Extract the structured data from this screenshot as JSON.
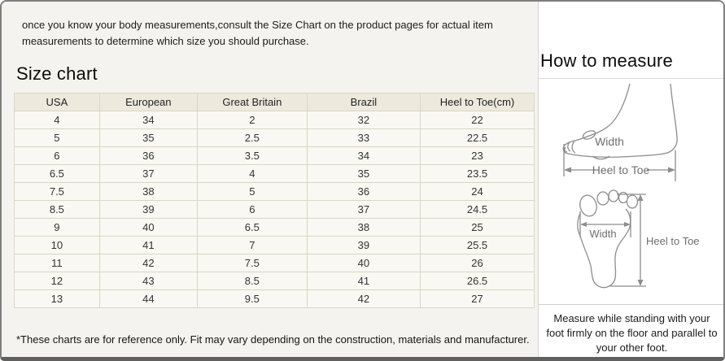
{
  "intro": "once you know your body measurements,consult the Size Chart on the product pages for actual item measurements to determine which size you should purchase.",
  "size_chart": {
    "title": "Size chart",
    "columns": [
      "USA",
      "European",
      "Great Britain",
      "Brazil",
      "Heel to Toe(cm)"
    ],
    "rows": [
      [
        "4",
        "34",
        "2",
        "32",
        "22"
      ],
      [
        "5",
        "35",
        "2.5",
        "33",
        "22.5"
      ],
      [
        "6",
        "36",
        "3.5",
        "34",
        "23"
      ],
      [
        "6.5",
        "37",
        "4",
        "35",
        "23.5"
      ],
      [
        "7.5",
        "38",
        "5",
        "36",
        "24"
      ],
      [
        "8.5",
        "39",
        "6",
        "37",
        "24.5"
      ],
      [
        "9",
        "40",
        "6.5",
        "38",
        "25"
      ],
      [
        "10",
        "41",
        "7",
        "39",
        "25.5"
      ],
      [
        "11",
        "42",
        "7.5",
        "40",
        "26"
      ],
      [
        "12",
        "43",
        "8.5",
        "41",
        "26.5"
      ],
      [
        "13",
        "44",
        "9.5",
        "42",
        "27"
      ]
    ],
    "footnote": "*These charts are for reference only. Fit may vary depending on the construction, materials and manufacturer."
  },
  "how_to_measure": {
    "title": "How to measure",
    "side_view": {
      "width_label": "Width",
      "length_label": "Heel to Toe"
    },
    "sole_view": {
      "width_label": "Width",
      "length_label": "Heel to Toe"
    },
    "note": "Measure while standing with your foot firmly on the floor and parallel to your other foot."
  },
  "colors": {
    "table_header_bg": "#edeadd",
    "table_row_bg": "#f9f8f2",
    "table_border": "#d9d6c6",
    "left_panel_bg": "#f4f3ef",
    "outer_border": "#7e7e7e",
    "diagram_stroke": "#8c8c8c"
  }
}
